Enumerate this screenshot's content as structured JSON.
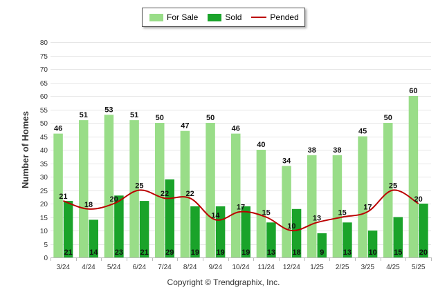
{
  "chart_data": {
    "type": "bar",
    "ylabel": "Number of Homes",
    "ylim": [
      0,
      80
    ],
    "yticks": [
      0,
      5,
      10,
      15,
      20,
      25,
      30,
      35,
      40,
      45,
      50,
      55,
      60,
      65,
      70,
      75,
      80
    ],
    "grid": true,
    "legend_position": "top-center",
    "categories": [
      "3/24",
      "4/24",
      "5/24",
      "6/24",
      "7/24",
      "8/24",
      "9/24",
      "10/24",
      "11/24",
      "12/24",
      "1/25",
      "2/25",
      "3/25",
      "4/25",
      "5/25"
    ],
    "series": [
      {
        "name": "For Sale",
        "kind": "bar",
        "color": "#99dd88",
        "values": [
          46,
          51,
          53,
          51,
          50,
          47,
          50,
          46,
          40,
          34,
          38,
          38,
          45,
          50,
          60
        ]
      },
      {
        "name": "Sold",
        "kind": "bar",
        "color": "#1aa32a",
        "values": [
          21,
          14,
          23,
          21,
          29,
          19,
          19,
          19,
          13,
          18,
          9,
          13,
          10,
          15,
          20
        ]
      },
      {
        "name": "Pended",
        "kind": "line",
        "color": "#bb0000",
        "values": [
          21,
          18,
          20,
          25,
          22,
          22,
          14,
          17,
          15,
          10,
          13,
          15,
          17,
          25,
          20
        ]
      }
    ]
  },
  "footer": "Copyright © Trendgraphix, Inc."
}
